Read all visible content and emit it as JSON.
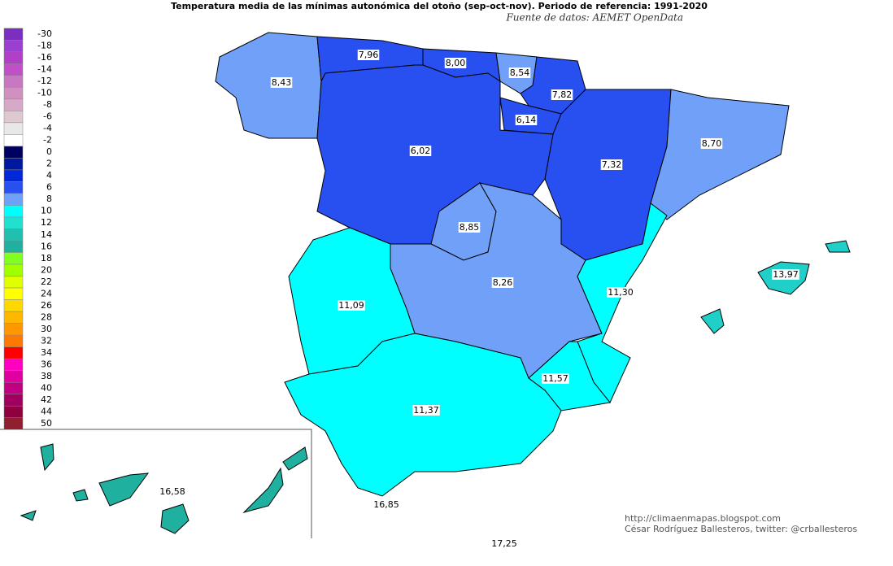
{
  "title": "Temperatura media de las mínimas autonómica del otoño (sep-oct-nov). Periodo de referencia: 1991-2020",
  "source": "Fuente de datos: AEMET OpenData",
  "legend": [
    {
      "label": "-30",
      "color": "#7b2fbf"
    },
    {
      "label": "-18",
      "color": "#9a3fcf"
    },
    {
      "label": "-16",
      "color": "#b040c8"
    },
    {
      "label": "-14",
      "color": "#c050c8"
    },
    {
      "label": "-12",
      "color": "#c878c0"
    },
    {
      "label": "-10",
      "color": "#d090c0"
    },
    {
      "label": "-8",
      "color": "#d8a8c8"
    },
    {
      "label": "-6",
      "color": "#e0c8d0"
    },
    {
      "label": "-4",
      "color": "#e8e8e8"
    },
    {
      "label": "-2",
      "color": "#ffffff"
    },
    {
      "label": "0",
      "color": "#000060"
    },
    {
      "label": "2",
      "color": "#0018a0"
    },
    {
      "label": "4",
      "color": "#0028d8"
    },
    {
      "label": "6",
      "color": "#2850f0"
    },
    {
      "label": "8",
      "color": "#70a0f8"
    },
    {
      "label": "10",
      "color": "#00ffff"
    },
    {
      "label": "12",
      "color": "#20e0d0"
    },
    {
      "label": "14",
      "color": "#20c0b0"
    },
    {
      "label": "16",
      "color": "#20b0a0"
    },
    {
      "label": "18",
      "color": "#80ff20"
    },
    {
      "label": "20",
      "color": "#a0ff00"
    },
    {
      "label": "22",
      "color": "#e0ff00"
    },
    {
      "label": "24",
      "color": "#ffff00"
    },
    {
      "label": "26",
      "color": "#ffd800"
    },
    {
      "label": "28",
      "color": "#ffb800"
    },
    {
      "label": "30",
      "color": "#ff9800"
    },
    {
      "label": "32",
      "color": "#ff7800"
    },
    {
      "label": "34",
      "color": "#ff0000"
    },
    {
      "label": "36",
      "color": "#ff00c0"
    },
    {
      "label": "38",
      "color": "#e000a0"
    },
    {
      "label": "40",
      "color": "#c00080"
    },
    {
      "label": "42",
      "color": "#a00060"
    },
    {
      "label": "44",
      "color": "#900040"
    },
    {
      "label": "50",
      "color": "#902030"
    }
  ],
  "regions": [
    {
      "label": "8,43",
      "color": "#70a0f8"
    },
    {
      "label": "7,96",
      "color": "#2850f0"
    },
    {
      "label": "8,00",
      "color": "#2850f0"
    },
    {
      "label": "8,54",
      "color": "#70a0f8"
    },
    {
      "label": "7,82",
      "color": "#2850f0"
    },
    {
      "label": "6,14",
      "color": "#2850f0"
    },
    {
      "label": "7,32",
      "color": "#2850f0"
    },
    {
      "label": "8,70",
      "color": "#70a0f8"
    },
    {
      "label": "6,02",
      "color": "#2850f0"
    },
    {
      "label": "8,85",
      "color": "#70a0f8"
    },
    {
      "label": "8,26",
      "color": "#70a0f8"
    },
    {
      "label": "11,30",
      "color": "#00ffff"
    },
    {
      "label": "11,57",
      "color": "#00ffff"
    },
    {
      "label": "11,09",
      "color": "#00ffff"
    },
    {
      "label": "11,37",
      "color": "#00ffff"
    },
    {
      "label": "13,97",
      "color": "#20d0c8"
    },
    {
      "label": "16,58",
      "color": "#20b0a0"
    },
    {
      "label": "16,85",
      "color": "#20b0a0"
    },
    {
      "label": "17,25",
      "color": "#20b0a0"
    }
  ],
  "credits": [
    "http://climaenmapas.blogspot.com",
    "César Rodríguez Ballesteros, twitter: @crballesteros"
  ]
}
